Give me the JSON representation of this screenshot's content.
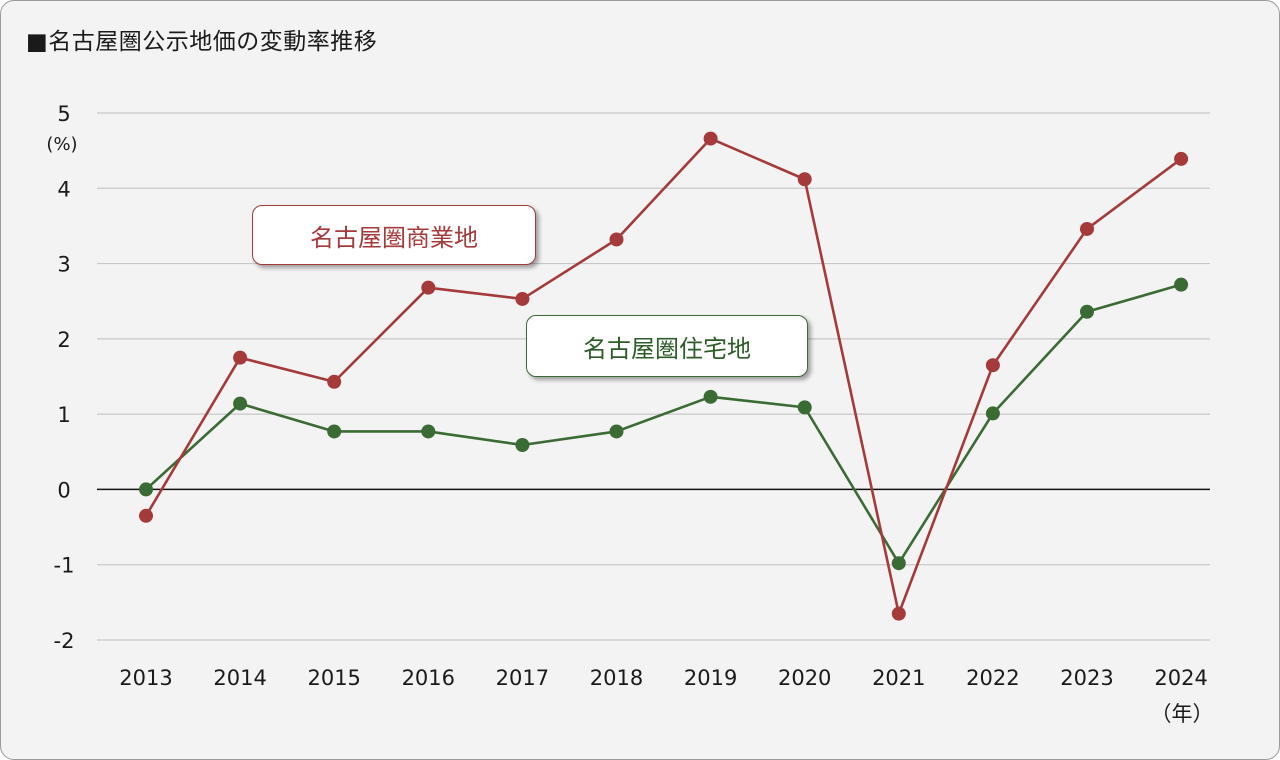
{
  "title": "■名古屋圏公示地価の変動率推移",
  "chart_data": {
    "type": "line",
    "title": "■名古屋圏公示地価の変動率推移",
    "categories": [
      "2013",
      "2014",
      "2015",
      "2016",
      "2017",
      "2018",
      "2019",
      "2020",
      "2021",
      "2022",
      "2023",
      "2024"
    ],
    "series": [
      {
        "name": "名古屋圏商業地",
        "color": "#a43a3a",
        "values": [
          -0.35,
          1.75,
          1.43,
          2.68,
          2.53,
          3.32,
          4.66,
          4.12,
          -1.65,
          1.65,
          3.46,
          4.39
        ]
      },
      {
        "name": "名古屋圏住宅地",
        "color": "#3b6b34",
        "values": [
          0.0,
          1.14,
          0.77,
          0.77,
          0.59,
          0.77,
          1.23,
          1.09,
          -0.98,
          1.01,
          2.36,
          2.72
        ]
      }
    ],
    "ylim": [
      -2,
      5
    ],
    "yticks": [
      "5",
      "4",
      "3",
      "2",
      "1",
      "0",
      "-1",
      "-2"
    ],
    "ylabel": "(%)",
    "xlabel": "（年）",
    "grid": true,
    "zero_line": true
  }
}
